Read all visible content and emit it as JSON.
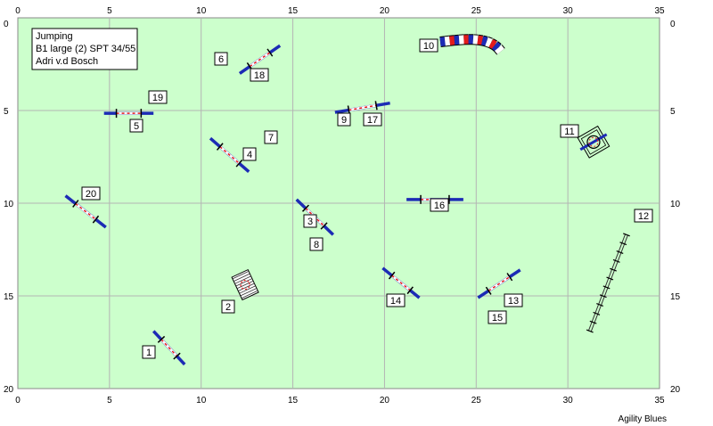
{
  "course": {
    "info": {
      "type": "Jumping",
      "class": "B1 large (2) SPT 34/55",
      "judge": "Adri v.d Bosch"
    },
    "grid": {
      "x_max": 35,
      "y_max": 20,
      "step": 5
    },
    "x_ticks": [
      "0",
      "5",
      "10",
      "15",
      "20",
      "25",
      "30",
      "35"
    ],
    "y_ticks": [
      "0",
      "5",
      "10",
      "15",
      "20"
    ],
    "footer": "Agility Blues",
    "colors": {
      "field": "#ccffcc",
      "grid": "#b4b4b4",
      "bar_ends": "#1c2bb5",
      "tunnel_red": "#e21c1c",
      "tunnel_blue": "#1c2bb5"
    },
    "obstacles": [
      {
        "label": "1",
        "kind": "jump",
        "from": [
          7.4,
          16.9
        ],
        "to": [
          9.1,
          18.7
        ]
      },
      {
        "label": "2",
        "kind": "tire-frame",
        "at": [
          12.4,
          14.4
        ]
      },
      {
        "label": "3",
        "kind": "jump",
        "from": [
          15.2,
          9.8
        ],
        "to": [
          17.2,
          11.7
        ]
      },
      {
        "label": "4",
        "kind": "jump",
        "from": [
          10.5,
          6.5
        ],
        "to": [
          12.6,
          8.3
        ]
      },
      {
        "label": "5",
        "kind": "jump",
        "from": [
          4.7,
          5.15
        ],
        "to": [
          7.4,
          5.15
        ]
      },
      {
        "label": "6",
        "kind": "jump",
        "from": [
          12.1,
          3.0
        ],
        "to": [
          14.3,
          1.5
        ]
      },
      {
        "label": "7",
        "kind": "number-only"
      },
      {
        "label": "8",
        "kind": "number-only"
      },
      {
        "label": "9",
        "kind": "jump",
        "from": [
          17.3,
          5.1
        ],
        "to": [
          20.3,
          4.6
        ]
      },
      {
        "label": "10",
        "kind": "tunnel"
      },
      {
        "label": "11",
        "kind": "tire",
        "at": [
          31.4,
          6.7
        ]
      },
      {
        "label": "12",
        "kind": "weave",
        "from": [
          31.2,
          16.9
        ],
        "to": [
          33.2,
          11.7
        ]
      },
      {
        "label": "13",
        "kind": "jump",
        "from": [
          25.1,
          15.1
        ],
        "to": [
          27.4,
          13.6
        ]
      },
      {
        "label": "14",
        "kind": "jump",
        "from": [
          19.9,
          13.5
        ],
        "to": [
          21.9,
          15.1
        ]
      },
      {
        "label": "15",
        "kind": "number-only"
      },
      {
        "label": "16",
        "kind": "jump",
        "from": [
          21.2,
          9.8
        ],
        "to": [
          24.3,
          9.8
        ]
      },
      {
        "label": "17",
        "kind": "number-only"
      },
      {
        "label": "18",
        "kind": "number-only"
      },
      {
        "label": "19",
        "kind": "number-only"
      },
      {
        "label": "20",
        "kind": "jump",
        "from": [
          2.6,
          9.6
        ],
        "to": [
          4.8,
          11.3
        ]
      }
    ]
  }
}
